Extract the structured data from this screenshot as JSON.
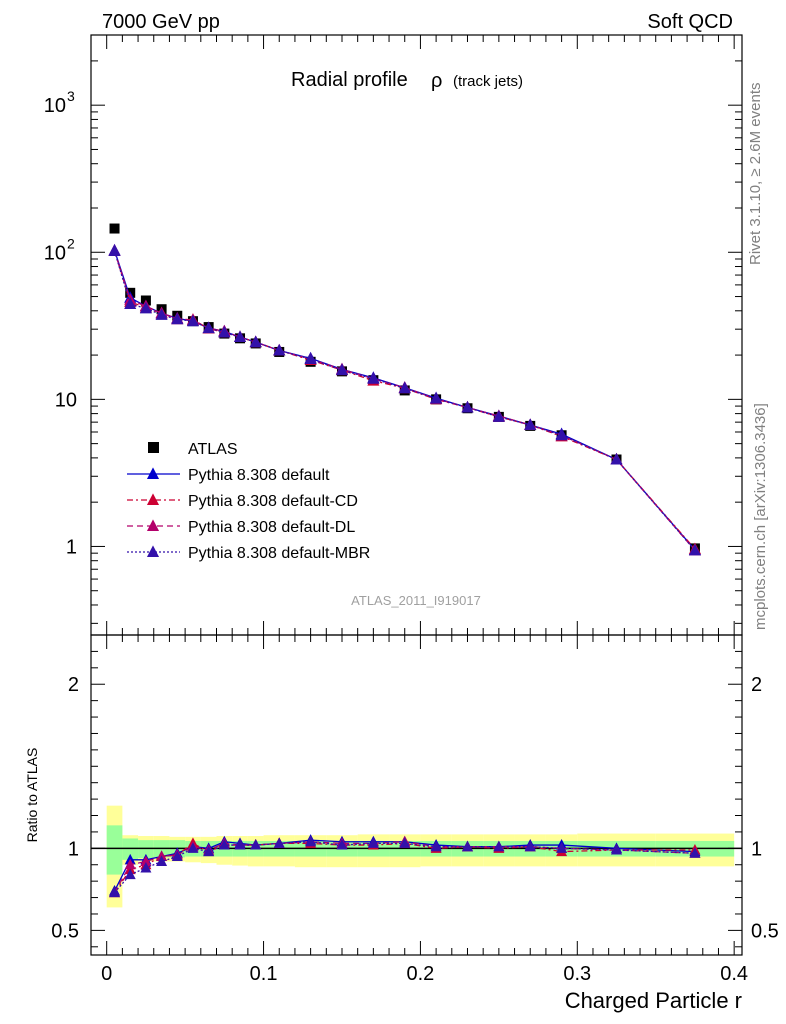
{
  "header": {
    "left": "7000 GeV pp",
    "right": "Soft QCD"
  },
  "side": {
    "rivet": "Rivet 3.1.10, ≥ 2.6M events",
    "mcplots": "mcplots.cern.ch [arXiv:1306.3436]"
  },
  "chart_data": [
    {
      "type": "scatter",
      "panel": "main",
      "title": "Radial profile",
      "title_symbol": "ρ",
      "title_suffix": "(track jets)",
      "analysis_label": "ATLAS_2011_I919017",
      "yscale": "log",
      "ylim": [
        0.25,
        3000
      ],
      "xlim": [
        -0.01,
        0.405
      ],
      "y_tick_labels": [
        "1",
        "10",
        "10",
        "10"
      ],
      "y_tick_exponents": [
        "",
        "",
        "2",
        "3"
      ],
      "legend_position": "lower-left",
      "x": [
        0.005,
        0.015,
        0.025,
        0.035,
        0.045,
        0.055,
        0.065,
        0.075,
        0.085,
        0.095,
        0.11,
        0.13,
        0.15,
        0.17,
        0.19,
        0.21,
        0.23,
        0.25,
        0.27,
        0.29,
        0.325,
        0.375
      ],
      "series": [
        {
          "name": "ATLAS",
          "color": "#000000",
          "marker": "square",
          "values": [
            145,
            53,
            47,
            41,
            37,
            34,
            31,
            28,
            26,
            24,
            21,
            18,
            15.5,
            13.5,
            11.5,
            10,
            8.7,
            7.6,
            6.6,
            5.7,
            3.9,
            0.97
          ]
        },
        {
          "name": "Pythia 8.308 default",
          "color": "#0000cc",
          "marker": "triangle",
          "line": "solid",
          "values": [
            103,
            49,
            43,
            38.5,
            35.5,
            34,
            30.5,
            29,
            26.5,
            24.5,
            21.5,
            19,
            16,
            14,
            12,
            10.2,
            8.8,
            7.7,
            6.7,
            5.8,
            3.9,
            0.95
          ]
        },
        {
          "name": "Pythia 8.308 default-CD",
          "color": "#cc0033",
          "marker": "triangle",
          "line": "dashdot",
          "values": [
            102,
            46,
            42,
            38.5,
            35,
            34.8,
            30.3,
            28.5,
            26.5,
            24.5,
            21.5,
            18.5,
            15.8,
            13.4,
            11.9,
            10,
            8.8,
            7.6,
            6.7,
            5.6,
            3.9,
            0.96
          ]
        },
        {
          "name": "Pythia 8.308 default-DL",
          "color": "#b3006b",
          "marker": "triangle",
          "line": "dashed",
          "values": [
            102,
            47.5,
            43,
            38.5,
            35.5,
            34.5,
            30.5,
            29,
            26.5,
            24.5,
            21.5,
            18.8,
            16,
            13.8,
            12,
            10.1,
            8.8,
            7.7,
            6.7,
            5.7,
            3.9,
            0.94
          ]
        },
        {
          "name": "Pythia 8.308 default-MBR",
          "color": "#3311aa",
          "marker": "triangle",
          "line": "dotted",
          "values": [
            102,
            44.5,
            41.5,
            37.5,
            35,
            34,
            30.5,
            28.5,
            26.5,
            24.5,
            21.5,
            18.8,
            15.8,
            13.8,
            11.9,
            10.1,
            8.8,
            7.6,
            6.7,
            5.7,
            3.9,
            0.94
          ]
        }
      ]
    },
    {
      "type": "scatter",
      "panel": "ratio",
      "ylabel": "Ratio to ATLAS",
      "xlabel": "Charged Particle r",
      "ylim": [
        0.35,
        2.3
      ],
      "xlim": [
        -0.01,
        0.405
      ],
      "y_ticks": [
        0.5,
        1,
        2
      ],
      "y_tick_labels": [
        "0.5",
        "1",
        "2"
      ],
      "x_ticks": [
        0,
        0.1,
        0.2,
        0.3,
        0.4
      ],
      "x_tick_labels": [
        "0",
        "0.1",
        "0.2",
        "0.3",
        "0.4"
      ],
      "x": [
        0.005,
        0.015,
        0.025,
        0.035,
        0.045,
        0.055,
        0.065,
        0.075,
        0.085,
        0.095,
        0.11,
        0.13,
        0.15,
        0.17,
        0.19,
        0.21,
        0.23,
        0.25,
        0.27,
        0.29,
        0.325,
        0.375
      ],
      "bin_edges": [
        0,
        0.01,
        0.02,
        0.03,
        0.04,
        0.05,
        0.06,
        0.07,
        0.08,
        0.09,
        0.1,
        0.12,
        0.14,
        0.16,
        0.18,
        0.2,
        0.22,
        0.24,
        0.26,
        0.28,
        0.3,
        0.35,
        0.4
      ],
      "band_green": [
        [
          0.84,
          1.14
        ],
        [
          0.93,
          1.06
        ],
        [
          0.94,
          1.05
        ],
        [
          0.945,
          1.05
        ],
        [
          0.945,
          1.05
        ],
        [
          0.95,
          1.045
        ],
        [
          0.95,
          1.045
        ],
        [
          0.95,
          1.045
        ],
        [
          0.95,
          1.045
        ],
        [
          0.95,
          1.045
        ],
        [
          0.95,
          1.045
        ],
        [
          0.95,
          1.045
        ],
        [
          0.95,
          1.045
        ],
        [
          0.95,
          1.045
        ],
        [
          0.95,
          1.045
        ],
        [
          0.95,
          1.045
        ],
        [
          0.95,
          1.045
        ],
        [
          0.95,
          1.045
        ],
        [
          0.95,
          1.045
        ],
        [
          0.95,
          1.045
        ],
        [
          0.95,
          1.045
        ],
        [
          0.95,
          1.045
        ]
      ],
      "band_yellow": [
        [
          0.64,
          1.26
        ],
        [
          0.9,
          1.08
        ],
        [
          0.92,
          1.075
        ],
        [
          0.92,
          1.075
        ],
        [
          0.92,
          1.07
        ],
        [
          0.915,
          1.07
        ],
        [
          0.91,
          1.07
        ],
        [
          0.9,
          1.075
        ],
        [
          0.895,
          1.075
        ],
        [
          0.89,
          1.075
        ],
        [
          0.89,
          1.08
        ],
        [
          0.885,
          1.08
        ],
        [
          0.885,
          1.08
        ],
        [
          0.885,
          1.085
        ],
        [
          0.885,
          1.085
        ],
        [
          0.89,
          1.085
        ],
        [
          0.89,
          1.085
        ],
        [
          0.89,
          1.085
        ],
        [
          0.89,
          1.085
        ],
        [
          0.89,
          1.085
        ],
        [
          0.89,
          1.09
        ],
        [
          0.89,
          1.09
        ]
      ],
      "series": [
        {
          "name": "Pythia 8.308 default",
          "color": "#0000cc",
          "line": "solid",
          "values": [
            0.74,
            0.93,
            0.93,
            0.95,
            0.97,
            1.01,
            1.0,
            1.04,
            1.03,
            1.02,
            1.03,
            1.05,
            1.04,
            1.04,
            1.04,
            1.02,
            1.01,
            1.01,
            1.02,
            1.02,
            1.0,
            0.98
          ]
        },
        {
          "name": "Pythia 8.308 default-CD",
          "color": "#cc0033",
          "line": "dashdot",
          "values": [
            0.73,
            0.87,
            0.9,
            0.95,
            0.96,
            1.03,
            0.98,
            1.02,
            1.02,
            1.02,
            1.03,
            1.03,
            1.02,
            1.02,
            1.03,
            1.0,
            1.01,
            1.0,
            1.01,
            0.98,
            0.99,
            0.99
          ]
        },
        {
          "name": "Pythia 8.308 default-DL",
          "color": "#b3006b",
          "line": "dashed",
          "values": [
            0.73,
            0.9,
            0.92,
            0.95,
            0.96,
            1.01,
            0.99,
            1.03,
            1.02,
            1.02,
            1.03,
            1.04,
            1.03,
            1.03,
            1.04,
            1.01,
            1.01,
            1.01,
            1.01,
            1.0,
            0.99,
            0.97
          ]
        },
        {
          "name": "Pythia 8.308 default-MBR",
          "color": "#3311aa",
          "line": "dotted",
          "values": [
            0.73,
            0.84,
            0.88,
            0.92,
            0.95,
            1.0,
            0.98,
            1.02,
            1.02,
            1.02,
            1.03,
            1.04,
            1.02,
            1.03,
            1.03,
            1.01,
            1.01,
            1.01,
            1.01,
            1.0,
            0.99,
            0.97
          ]
        }
      ]
    }
  ]
}
